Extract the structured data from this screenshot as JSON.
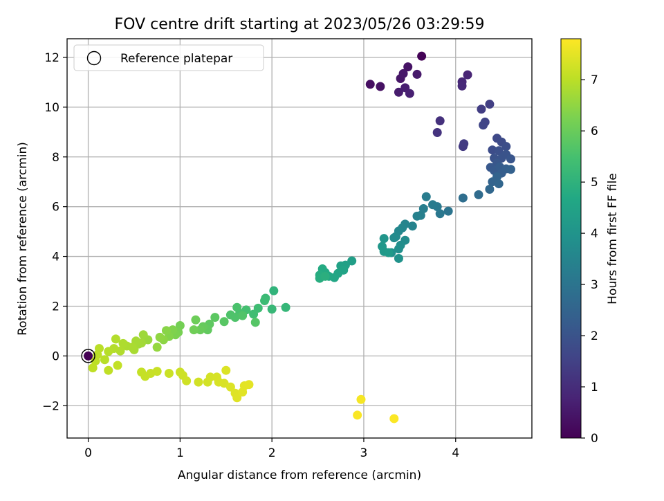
{
  "chart_data": {
    "type": "scatter",
    "title": "FOV centre drift starting at 2023/05/26 03:29:59",
    "xlabel": "Angular distance from reference (arcmin)",
    "ylabel": "Rotation from reference (arcmin)",
    "xlim": [
      -0.23,
      4.83
    ],
    "ylim": [
      -3.3,
      12.75
    ],
    "x_ticks": [
      0,
      1,
      2,
      3,
      4
    ],
    "y_ticks": [
      -2,
      0,
      2,
      4,
      6,
      8,
      10,
      12
    ],
    "grid": true,
    "legend": {
      "placement": "upper-left",
      "entries": [
        "Reference platepar"
      ]
    },
    "colorbar": {
      "label": "Hours from first FF file",
      "colormap": "viridis",
      "range": [
        0,
        7.8
      ],
      "ticks": [
        0,
        1,
        2,
        3,
        4,
        5,
        6,
        7
      ]
    },
    "reference_point": {
      "x": 0,
      "y": 0
    },
    "points": [
      [
        3.63,
        12.05,
        0.05
      ],
      [
        3.07,
        10.92,
        0.3
      ],
      [
        3.18,
        10.83,
        0.35
      ],
      [
        3.48,
        11.62,
        0.4
      ],
      [
        3.4,
        11.15,
        0.45
      ],
      [
        3.43,
        11.35,
        0.5
      ],
      [
        3.58,
        11.32,
        0.55
      ],
      [
        3.38,
        10.6,
        0.6
      ],
      [
        3.45,
        10.78,
        0.65
      ],
      [
        3.5,
        10.55,
        0.7
      ],
      [
        4.13,
        11.3,
        0.8
      ],
      [
        4.07,
        11.02,
        0.85
      ],
      [
        4.07,
        10.85,
        0.9
      ],
      [
        3.83,
        9.45,
        1.1
      ],
      [
        3.8,
        8.98,
        1.15
      ],
      [
        4.08,
        8.42,
        1.3
      ],
      [
        4.09,
        8.53,
        1.35
      ],
      [
        4.28,
        9.92,
        1.4
      ],
      [
        4.37,
        10.12,
        1.45
      ],
      [
        4.32,
        9.4,
        1.55
      ],
      [
        4.3,
        9.28,
        1.6
      ],
      [
        4.45,
        8.75,
        1.7
      ],
      [
        4.5,
        8.6,
        1.75
      ],
      [
        4.4,
        8.28,
        1.8
      ],
      [
        4.55,
        8.42,
        1.85
      ],
      [
        4.47,
        8.25,
        1.9
      ],
      [
        4.42,
        7.95,
        1.95
      ],
      [
        4.5,
        7.95,
        2.0
      ],
      [
        4.55,
        8.1,
        2.0
      ],
      [
        4.6,
        7.92,
        2.05
      ],
      [
        4.45,
        7.75,
        2.1
      ],
      [
        4.38,
        7.58,
        2.15
      ],
      [
        4.42,
        7.45,
        2.2
      ],
      [
        4.48,
        7.6,
        2.25
      ],
      [
        4.5,
        7.35,
        2.3
      ],
      [
        4.55,
        7.52,
        2.35
      ],
      [
        4.6,
        7.5,
        2.4
      ],
      [
        4.45,
        7.2,
        2.45
      ],
      [
        4.4,
        7.0,
        2.5
      ],
      [
        4.47,
        6.92,
        2.55
      ],
      [
        4.37,
        6.7,
        2.6
      ],
      [
        4.25,
        6.48,
        2.7
      ],
      [
        4.08,
        6.35,
        2.8
      ],
      [
        3.92,
        5.82,
        3.0
      ],
      [
        3.83,
        5.72,
        3.1
      ],
      [
        3.8,
        6.0,
        3.15
      ],
      [
        3.75,
        6.08,
        3.2
      ],
      [
        3.68,
        6.4,
        3.25
      ],
      [
        3.65,
        5.92,
        3.3
      ],
      [
        3.62,
        5.65,
        3.35
      ],
      [
        3.58,
        5.62,
        3.4
      ],
      [
        3.53,
        5.22,
        3.45
      ],
      [
        3.45,
        5.3,
        3.5
      ],
      [
        3.42,
        5.15,
        3.55
      ],
      [
        3.38,
        5.02,
        3.6
      ],
      [
        3.35,
        4.8,
        3.65
      ],
      [
        3.33,
        4.75,
        3.7
      ],
      [
        3.45,
        4.65,
        3.75
      ],
      [
        3.4,
        4.45,
        3.8
      ],
      [
        3.38,
        4.3,
        3.85
      ],
      [
        3.3,
        4.15,
        3.9
      ],
      [
        3.38,
        3.92,
        3.95
      ],
      [
        3.22,
        4.72,
        4.05
      ],
      [
        3.2,
        4.4,
        4.1
      ],
      [
        3.22,
        4.2,
        4.15
      ],
      [
        3.27,
        4.15,
        4.2
      ],
      [
        2.87,
        3.82,
        4.35
      ],
      [
        2.8,
        3.65,
        4.4
      ],
      [
        2.75,
        3.62,
        4.45
      ],
      [
        2.78,
        3.45,
        4.5
      ],
      [
        2.72,
        3.32,
        4.55
      ],
      [
        2.68,
        3.15,
        4.6
      ],
      [
        2.62,
        3.2,
        4.65
      ],
      [
        2.58,
        3.35,
        4.7
      ],
      [
        2.55,
        3.5,
        4.75
      ],
      [
        2.52,
        3.25,
        4.8
      ],
      [
        2.52,
        3.12,
        4.85
      ],
      [
        2.58,
        3.2,
        4.9
      ],
      [
        2.02,
        2.62,
        5.05
      ],
      [
        2.15,
        1.95,
        5.15
      ],
      [
        2.0,
        1.88,
        5.2
      ],
      [
        1.93,
        2.32,
        5.25
      ],
      [
        1.92,
        2.22,
        5.3
      ],
      [
        1.85,
        1.92,
        5.35
      ],
      [
        1.8,
        1.68,
        5.4
      ],
      [
        1.72,
        1.85,
        5.45
      ],
      [
        1.65,
        1.72,
        5.5
      ],
      [
        1.62,
        1.95,
        5.55
      ],
      [
        1.55,
        1.65,
        5.6
      ],
      [
        1.6,
        1.55,
        5.6
      ],
      [
        1.68,
        1.62,
        5.65
      ],
      [
        1.82,
        1.35,
        5.7
      ],
      [
        1.48,
        1.38,
        5.75
      ],
      [
        1.38,
        1.55,
        5.8
      ],
      [
        1.32,
        1.28,
        5.85
      ],
      [
        1.3,
        1.05,
        5.9
      ],
      [
        1.25,
        1.18,
        5.95
      ],
      [
        1.22,
        1.05,
        6.0
      ],
      [
        1.17,
        1.45,
        6.05
      ],
      [
        1.15,
        1.05,
        6.1
      ],
      [
        1.0,
        1.22,
        6.15
      ],
      [
        0.98,
        0.95,
        6.2
      ],
      [
        0.95,
        0.85,
        6.25
      ],
      [
        0.92,
        1.05,
        6.3
      ],
      [
        0.88,
        0.78,
        6.35
      ],
      [
        0.85,
        1.02,
        6.4
      ],
      [
        0.82,
        0.65,
        6.45
      ],
      [
        0.78,
        0.75,
        6.5
      ],
      [
        0.75,
        0.35,
        6.55
      ],
      [
        0.65,
        0.65,
        6.6
      ],
      [
        0.6,
        0.85,
        6.65
      ],
      [
        0.58,
        0.52,
        6.7
      ],
      [
        0.55,
        0.48,
        6.72
      ],
      [
        0.52,
        0.6,
        6.75
      ],
      [
        0.5,
        0.25,
        6.78
      ],
      [
        0.48,
        0.35,
        6.8
      ],
      [
        0.42,
        0.4,
        6.82
      ],
      [
        0.38,
        0.5,
        6.85
      ],
      [
        0.35,
        0.2,
        6.88
      ],
      [
        0.3,
        0.68,
        6.9
      ],
      [
        0.28,
        0.3,
        6.92
      ],
      [
        0.22,
        0.18,
        6.94
      ],
      [
        0.18,
        -0.15,
        6.96
      ],
      [
        0.12,
        0.3,
        6.98
      ],
      [
        0.1,
        0.05,
        7.0
      ],
      [
        0.08,
        -0.2,
        7.02
      ],
      [
        0.05,
        -0.48,
        7.04
      ],
      [
        0.22,
        -0.58,
        7.06
      ],
      [
        0.32,
        -0.38,
        7.08
      ],
      [
        0.58,
        -0.65,
        7.1
      ],
      [
        0.62,
        -0.82,
        7.12
      ],
      [
        0.68,
        -0.7,
        7.14
      ],
      [
        0.75,
        -0.62,
        7.16
      ],
      [
        0.88,
        -0.7,
        7.18
      ],
      [
        1.0,
        -0.65,
        7.2
      ],
      [
        1.03,
        -0.78,
        7.22
      ],
      [
        1.07,
        -1.0,
        7.24
      ],
      [
        1.2,
        -1.05,
        7.26
      ],
      [
        1.3,
        -1.05,
        7.28
      ],
      [
        1.33,
        -0.85,
        7.3
      ],
      [
        1.4,
        -0.85,
        7.32
      ],
      [
        1.42,
        -1.05,
        7.34
      ],
      [
        1.48,
        -1.1,
        7.36
      ],
      [
        1.5,
        -0.58,
        7.38
      ],
      [
        1.55,
        -1.25,
        7.4
      ],
      [
        1.6,
        -1.5,
        7.42
      ],
      [
        1.62,
        -1.68,
        7.44
      ],
      [
        1.68,
        -1.45,
        7.46
      ],
      [
        1.7,
        -1.2,
        7.48
      ],
      [
        1.75,
        -1.15,
        7.5
      ],
      [
        2.97,
        -1.75,
        7.7
      ],
      [
        2.93,
        -2.38,
        7.75
      ],
      [
        3.33,
        -2.52,
        7.78
      ]
    ]
  }
}
